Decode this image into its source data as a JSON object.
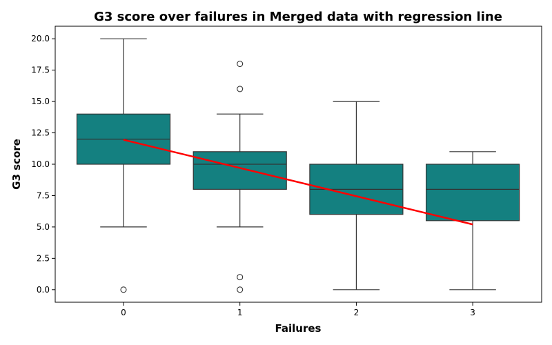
{
  "chart_data": {
    "type": "box",
    "title": "G3 score over failures in Merged data with regression line",
    "xlabel": "Failures",
    "ylabel": "G3 score",
    "ylim": [
      -1,
      21
    ],
    "yticks": [
      "0.0",
      "2.5",
      "5.0",
      "7.5",
      "10.0",
      "12.5",
      "15.0",
      "17.5",
      "20.0"
    ],
    "categories": [
      "0",
      "1",
      "2",
      "3"
    ],
    "boxes": [
      {
        "category": "0",
        "whisker_low": 5,
        "q1": 10,
        "median": 12,
        "q3": 14,
        "whisker_high": 20,
        "outliers": [
          0
        ]
      },
      {
        "category": "1",
        "whisker_low": 5,
        "q1": 8,
        "median": 10,
        "q3": 11,
        "whisker_high": 14,
        "outliers": [
          0,
          1,
          16,
          18
        ]
      },
      {
        "category": "2",
        "whisker_low": 0,
        "q1": 6,
        "median": 8,
        "q3": 10,
        "whisker_high": 15,
        "outliers": []
      },
      {
        "category": "3",
        "whisker_low": 0,
        "q1": 5.5,
        "median": 8,
        "q3": 10,
        "whisker_high": 11,
        "outliers": []
      }
    ],
    "regression": {
      "x": [
        0,
        3
      ],
      "y": [
        11.95,
        5.2
      ]
    },
    "colors": {
      "box": "#148080",
      "line": "#333333",
      "regression": "#ff0000"
    },
    "grid": false,
    "legend": "none"
  }
}
